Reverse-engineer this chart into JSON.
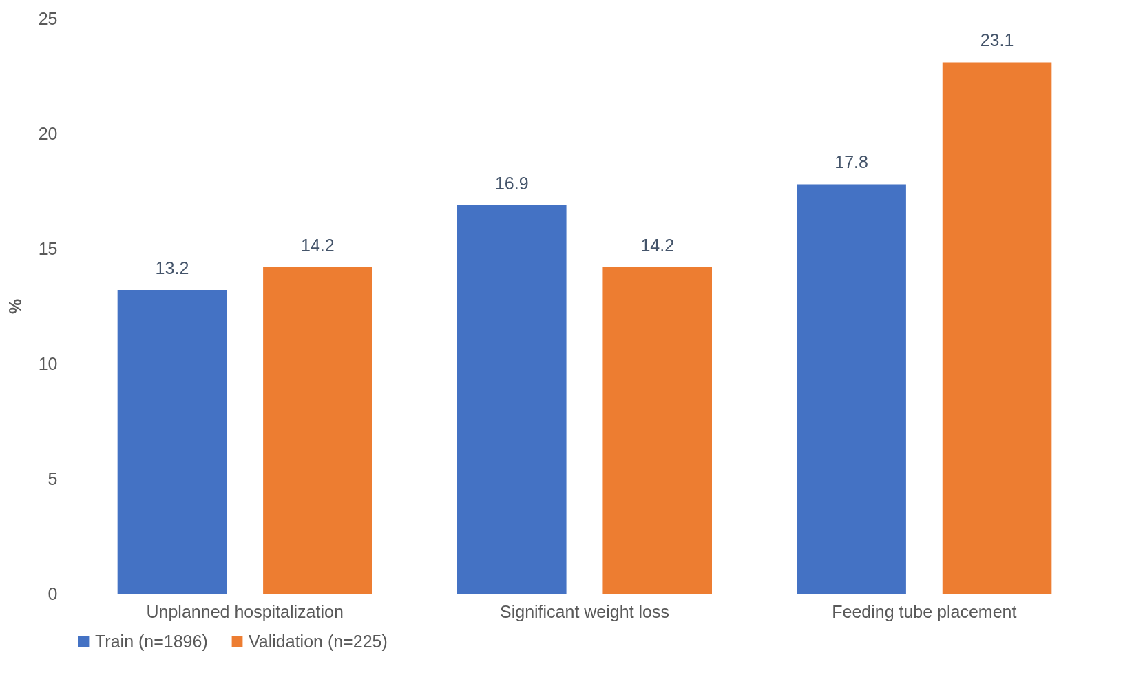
{
  "chart_data": {
    "type": "bar",
    "ylabel": "%",
    "categories": [
      "Unplanned hospitalization",
      "Significant weight loss",
      "Feeding tube placement"
    ],
    "series": [
      {
        "name": "Train (n=1896)",
        "color": "#4472c4",
        "values": [
          13.2,
          16.9,
          17.8
        ]
      },
      {
        "name": "Validation (n=225)",
        "color": "#ed7d31",
        "values": [
          14.2,
          14.2,
          23.1
        ]
      }
    ],
    "ylim": [
      0,
      25
    ],
    "yticks": [
      0,
      5,
      10,
      15,
      20,
      25
    ],
    "grid": "y",
    "legend": "bottom",
    "data_labels": true
  }
}
